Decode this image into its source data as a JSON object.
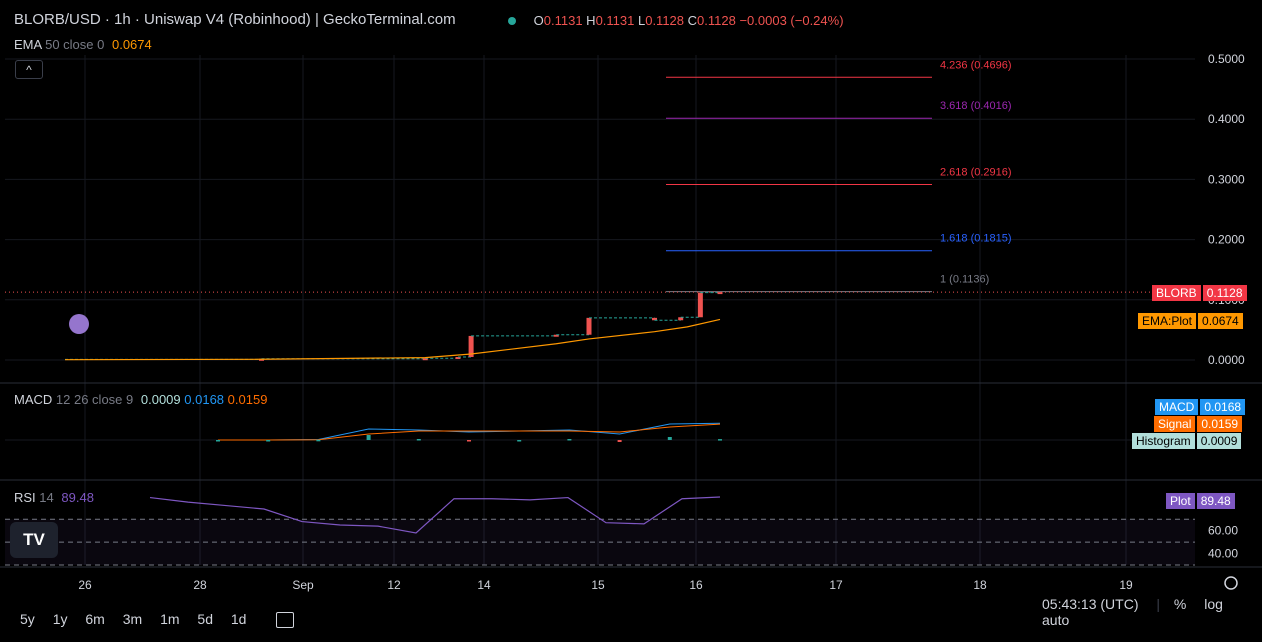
{
  "header": {
    "pair": "BLORB/USD · 1h · Uniswap V4 (Robinhood) | GeckoTerminal.com",
    "o_label": "O",
    "o_value": "0.1131",
    "h_label": "H",
    "h_value": "0.1131",
    "l_label": "L",
    "l_value": "0.1128",
    "c_label": "C",
    "c_value": "0.1128",
    "change": "−0.0003 (−0.24%)"
  },
  "ema_legend": {
    "name": "EMA",
    "params": "50 close 0",
    "value": "0.0674"
  },
  "macd_legend": {
    "name": "MACD",
    "params": "12 26 close 9",
    "hist": "0.0009",
    "macd": "0.0168",
    "signal": "0.0159"
  },
  "rsi_legend": {
    "name": "RSI",
    "params": "14",
    "value": "89.48"
  },
  "collapse_button": "^",
  "price_tags": {
    "blorb_label": "BLORB",
    "blorb_value": "0.1128",
    "ema_label": "EMA:Plot",
    "ema_value": "0.0674",
    "macd_label": "MACD",
    "macd_value": "0.0168",
    "signal_label": "Signal",
    "signal_value": "0.0159",
    "hist_label": "Histogram",
    "hist_value": "0.0009",
    "rsi_label": "Plot",
    "rsi_value": "89.48"
  },
  "bottom_bar": {
    "ranges": [
      "5y",
      "1y",
      "6m",
      "3m",
      "1m",
      "5d",
      "1d"
    ],
    "time": "05:43:13 (UTC)",
    "percent": "%",
    "log": "log",
    "auto": "auto"
  },
  "logo_text": "TV",
  "colors": {
    "up": "#26a69a",
    "down": "#ef5350",
    "ema": "#ff9800",
    "macd": "#2196f3",
    "signal": "#ff6d00",
    "rsi": "#7e57c2",
    "fib_red": "#f23645",
    "fib_purple": "#9c27b0",
    "fib_blue": "#2962ff",
    "fib_gray": "#787b86"
  },
  "chart_data": [
    {
      "type": "candlestick",
      "title": "BLORB/USD · 1h · Uniswap V4 (Robinhood)",
      "x_ticks": [
        "26",
        "28",
        "Sep",
        "12",
        "14",
        "15",
        "16",
        "17",
        "18",
        "19"
      ],
      "y_ticks": [
        "0.5000",
        "0.4000",
        "0.3000",
        "0.2000",
        "0.1000",
        "0.0000"
      ],
      "ylim": [
        0.0,
        0.5
      ],
      "price_series": [
        {
          "t": 0.0,
          "v": 0.001
        },
        {
          "t": 0.3,
          "v": 0.002
        },
        {
          "t": 0.55,
          "v": 0.003
        },
        {
          "t": 0.6,
          "v": 0.005
        },
        {
          "t": 0.62,
          "v": 0.04
        },
        {
          "t": 0.75,
          "v": 0.042
        },
        {
          "t": 0.8,
          "v": 0.07
        },
        {
          "t": 0.9,
          "v": 0.066
        },
        {
          "t": 0.94,
          "v": 0.071
        },
        {
          "t": 0.97,
          "v": 0.112
        },
        {
          "t": 1.0,
          "v": 0.1128
        }
      ],
      "ema_series": [
        {
          "t": 0.0,
          "v": 0.0005
        },
        {
          "t": 0.3,
          "v": 0.0012
        },
        {
          "t": 0.55,
          "v": 0.004
        },
        {
          "t": 0.62,
          "v": 0.01
        },
        {
          "t": 0.75,
          "v": 0.027
        },
        {
          "t": 0.8,
          "v": 0.035
        },
        {
          "t": 0.9,
          "v": 0.047
        },
        {
          "t": 0.95,
          "v": 0.055
        },
        {
          "t": 1.0,
          "v": 0.0674
        }
      ],
      "fib_levels": [
        {
          "label": "4.236 (0.4696)",
          "value": 0.4696,
          "color": "#f23645"
        },
        {
          "label": "3.618 (0.4016)",
          "value": 0.4016,
          "color": "#9c27b0"
        },
        {
          "label": "2.618 (0.2916)",
          "value": 0.2916,
          "color": "#f23645"
        },
        {
          "label": "1.618 (0.1815)",
          "value": 0.1815,
          "color": "#2962ff"
        },
        {
          "label": "1 (0.1136)",
          "value": 0.1136,
          "color": "#787b86"
        }
      ]
    },
    {
      "type": "line",
      "title": "MACD 12 26 close 9",
      "series": [
        {
          "name": "MACD",
          "values": [
            0.0,
            0.0,
            0.0005,
            0.011,
            0.01,
            0.008,
            0.009,
            0.01,
            0.006,
            0.016,
            0.0168
          ]
        },
        {
          "name": "Signal",
          "values": [
            0.0,
            0.0,
            0.0003,
            0.006,
            0.009,
            0.009,
            0.009,
            0.009,
            0.008,
            0.013,
            0.0159
          ]
        }
      ]
    },
    {
      "type": "line",
      "title": "RSI 14",
      "ylim": [
        30,
        100
      ],
      "y_ticks": [
        "60.00",
        "40.00"
      ],
      "series": [
        {
          "name": "Plot",
          "values": [
            89,
            85,
            82,
            79,
            68,
            65,
            64,
            58,
            88,
            88,
            87,
            89,
            67,
            66,
            88,
            89.48
          ]
        }
      ]
    }
  ]
}
